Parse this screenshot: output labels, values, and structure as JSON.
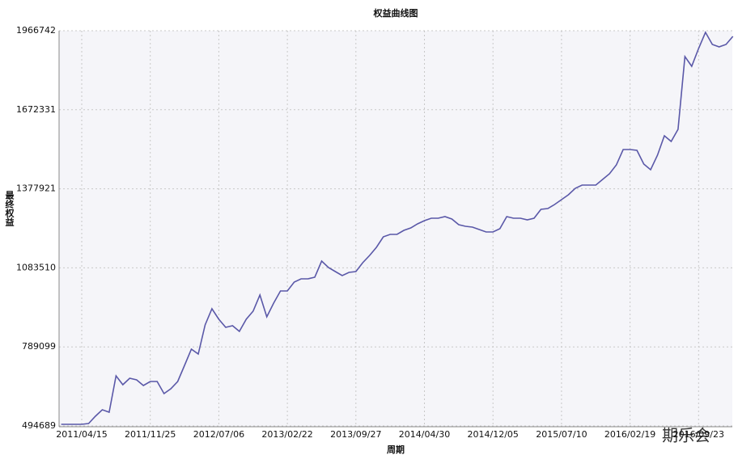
{
  "chart_data": {
    "type": "line",
    "title": "权益曲线图",
    "x_label": "周期",
    "y_label": "最终权益",
    "watermark": "期乐会",
    "categories": [
      null,
      null,
      null,
      "2011/04/15",
      null,
      null,
      null,
      null,
      null,
      null,
      null,
      null,
      null,
      "2011/11/25",
      null,
      null,
      null,
      null,
      null,
      null,
      null,
      null,
      null,
      "2012/07/06",
      null,
      null,
      null,
      null,
      null,
      null,
      null,
      null,
      null,
      "2013/02/22",
      null,
      null,
      null,
      null,
      null,
      null,
      null,
      null,
      null,
      "2013/09/27",
      null,
      null,
      null,
      null,
      null,
      null,
      null,
      null,
      null,
      "2014/04/30",
      null,
      null,
      null,
      null,
      null,
      null,
      null,
      null,
      null,
      "2014/12/05",
      null,
      null,
      null,
      null,
      null,
      null,
      null,
      null,
      null,
      "2015/07/10",
      null,
      null,
      null,
      null,
      null,
      null,
      null,
      null,
      null,
      "2016/02/19",
      null,
      null,
      null,
      null,
      null,
      null,
      null,
      null,
      null,
      "2016/09/23",
      null,
      null,
      null,
      null,
      null
    ],
    "series": [
      {
        "name": "最终权益",
        "color": "#5a58a8",
        "values": [
          500710,
          500710,
          500710,
          500710,
          503720,
          530800,
          554900,
          545860,
          681330,
          648220,
          672300,
          666280,
          645200,
          660250,
          660250,
          615100,
          633160,
          660250,
          720460,
          780670,
          762600,
          870970,
          931180,
          892040,
          861940,
          867960,
          846880,
          892040,
          922150,
          982350,
          901070,
          952260,
          997410,
          997410,
          1030520,
          1042570,
          1042570,
          1048590,
          1108800,
          1084710,
          1069660,
          1054610,
          1066650,
          1069660,
          1102770,
          1129870,
          1159970,
          1199110,
          1208140,
          1208140,
          1223190,
          1232220,
          1247270,
          1259310,
          1268340,
          1268340,
          1274370,
          1265330,
          1244260,
          1238240,
          1235230,
          1226200,
          1217170,
          1217170,
          1229210,
          1274370,
          1268340,
          1268340,
          1262320,
          1268340,
          1301460,
          1304470,
          1319520,
          1337580,
          1355640,
          1379720,
          1391760,
          1391760,
          1391760,
          1412830,
          1433900,
          1467010,
          1524210,
          1524210,
          1521200,
          1470020,
          1448950,
          1503140,
          1575380,
          1554320,
          1599470,
          1870400,
          1834280,
          1900510,
          1960720,
          1915560,
          1906530,
          1915560,
          1945660
        ]
      }
    ],
    "ylim": [
      494689,
      1966742
    ],
    "yticks": [
      494689,
      789099,
      1083510,
      1377921,
      1672331,
      1966742
    ],
    "grid": true
  }
}
